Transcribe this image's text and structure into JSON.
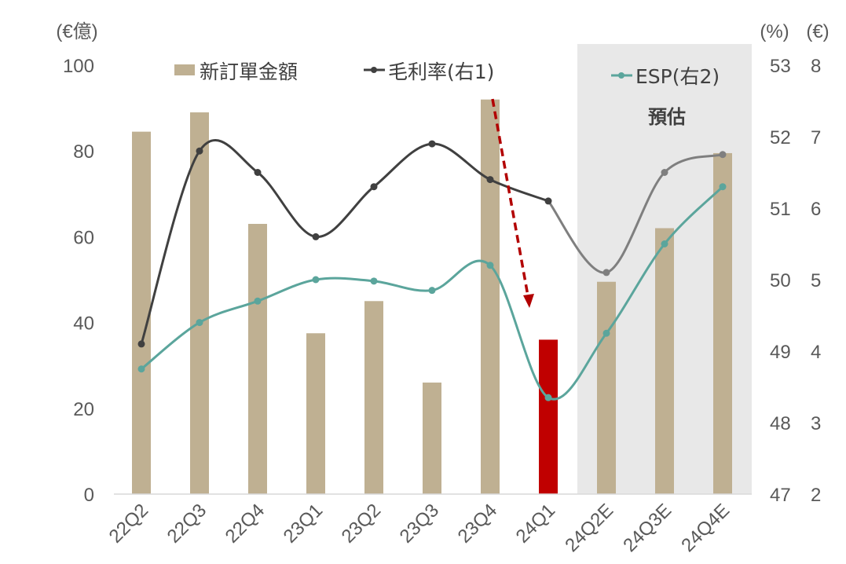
{
  "chart_data": {
    "type": "bar",
    "categories": [
      "22Q2",
      "22Q3",
      "22Q4",
      "23Q1",
      "23Q2",
      "23Q3",
      "23Q4",
      "24Q1",
      "24Q2E",
      "24Q3E",
      "24Q4E"
    ],
    "y_left": {
      "unit_label": "(€億)",
      "ylim": [
        0,
        100
      ],
      "ticks": [
        "0",
        "20",
        "40",
        "60",
        "80",
        "100"
      ]
    },
    "y_right1": {
      "unit_label": "(%)",
      "ylim": [
        47,
        53
      ],
      "ticks": [
        "47",
        "48",
        "49",
        "50",
        "51",
        "52",
        "53"
      ]
    },
    "y_right2": {
      "unit_label": "(€)",
      "ylim": [
        2,
        8
      ],
      "ticks": [
        "2",
        "3",
        "4",
        "5",
        "6",
        "7",
        "8"
      ]
    },
    "series": [
      {
        "name": "新訂單金額",
        "type": "bar",
        "axis": "left",
        "color": "#bfb092",
        "highlight_color": "#c00000",
        "highlight_index": 7,
        "values": [
          84.5,
          89,
          63,
          37.5,
          45,
          26,
          92,
          36,
          49.5,
          62,
          79.5
        ]
      },
      {
        "name": "毛利率(右1)",
        "type": "line",
        "axis": "right1",
        "color": "#404040",
        "forecast_color": "#7f7f7f",
        "values": [
          49.1,
          51.8,
          51.5,
          50.6,
          51.3,
          51.9,
          51.4,
          51.1,
          50.1,
          51.5,
          51.75
        ]
      },
      {
        "name": "ESP(右2)",
        "type": "line",
        "axis": "right2",
        "color": "#5ba59c",
        "values": [
          3.75,
          4.4,
          4.7,
          5.0,
          4.98,
          4.85,
          5.2,
          3.35,
          4.25,
          5.5,
          6.3
        ]
      }
    ],
    "forecast_start_index": 8,
    "annotation": "預估",
    "arrow_from_to": [
      6,
      7
    ],
    "grid": false,
    "legend": "top"
  }
}
